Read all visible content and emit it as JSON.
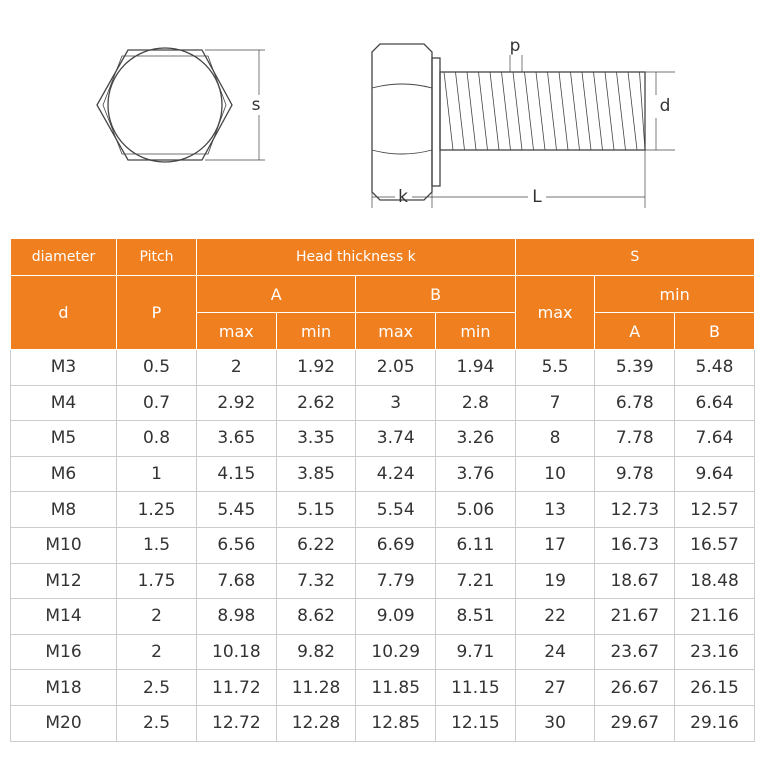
{
  "diagram": {
    "labels": [
      "s",
      "p",
      "d",
      "k",
      "L"
    ]
  },
  "table": {
    "header_row1": [
      "diameter",
      "Pitch",
      "Head thickness k",
      "S"
    ],
    "header_row2": [
      "d",
      "P",
      "A",
      "B",
      "max",
      "min"
    ],
    "header_row3": [
      "max",
      "min",
      "max",
      "min",
      "A",
      "B"
    ],
    "rows": [
      [
        "M3",
        "0.5",
        "2",
        "1.92",
        "2.05",
        "1.94",
        "5.5",
        "5.39",
        "5.48"
      ],
      [
        "M4",
        "0.7",
        "2.92",
        "2.62",
        "3",
        "2.8",
        "7",
        "6.78",
        "6.64"
      ],
      [
        "M5",
        "0.8",
        "3.65",
        "3.35",
        "3.74",
        "3.26",
        "8",
        "7.78",
        "7.64"
      ],
      [
        "M6",
        "1",
        "4.15",
        "3.85",
        "4.24",
        "3.76",
        "10",
        "9.78",
        "9.64"
      ],
      [
        "M8",
        "1.25",
        "5.45",
        "5.15",
        "5.54",
        "5.06",
        "13",
        "12.73",
        "12.57"
      ],
      [
        "M10",
        "1.5",
        "6.56",
        "6.22",
        "6.69",
        "6.11",
        "17",
        "16.73",
        "16.57"
      ],
      [
        "M12",
        "1.75",
        "7.68",
        "7.32",
        "7.79",
        "7.21",
        "19",
        "18.67",
        "18.48"
      ],
      [
        "M14",
        "2",
        "8.98",
        "8.62",
        "9.09",
        "8.51",
        "22",
        "21.67",
        "21.16"
      ],
      [
        "M16",
        "2",
        "10.18",
        "9.82",
        "10.29",
        "9.71",
        "24",
        "23.67",
        "23.16"
      ],
      [
        "M18",
        "2.5",
        "11.72",
        "11.28",
        "11.85",
        "11.15",
        "27",
        "26.67",
        "26.15"
      ],
      [
        "M20",
        "2.5",
        "12.72",
        "12.28",
        "12.85",
        "12.15",
        "30",
        "29.67",
        "29.16"
      ]
    ]
  }
}
